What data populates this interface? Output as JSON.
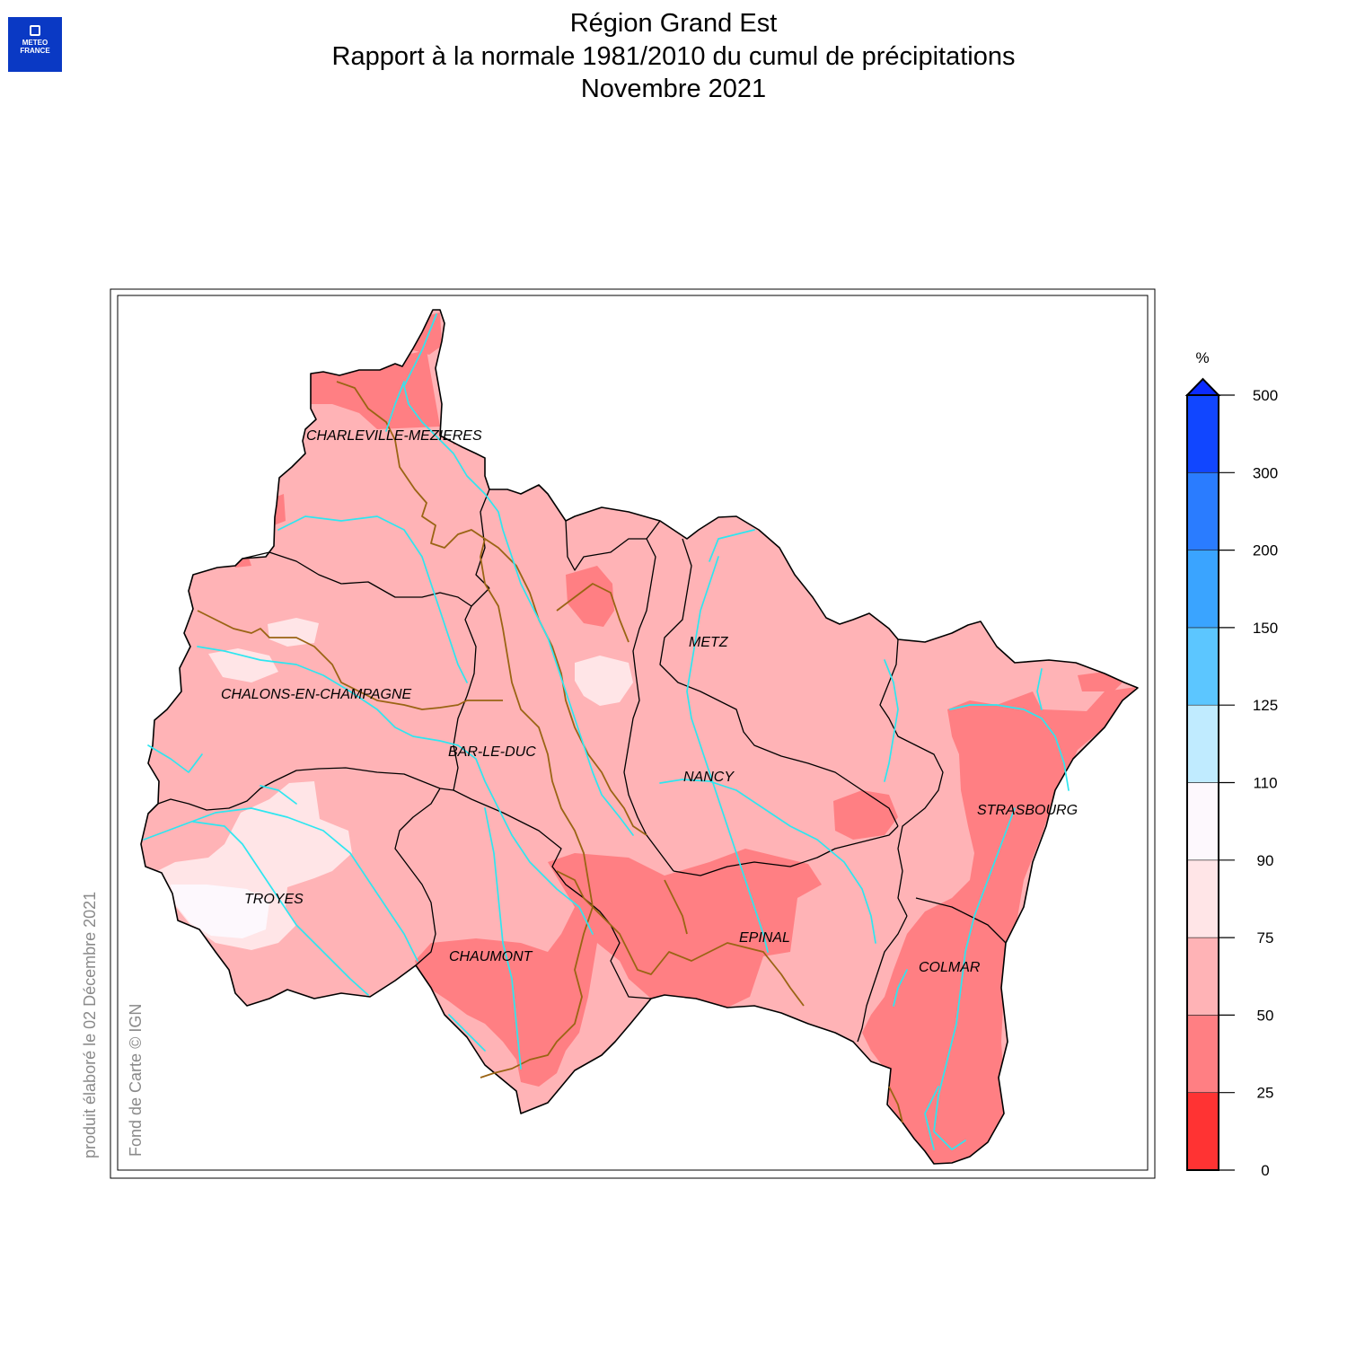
{
  "header": {
    "logo_text": [
      "METEO",
      "FRANCE"
    ],
    "title_lines": [
      "Région Grand Est",
      "Rapport à la normale 1981/2010 du cumul de précipitations",
      "Novembre 2021"
    ]
  },
  "credits": {
    "produced": "produit élaboré le 02 Décembre 2021",
    "basemap": "Fond de Carte © IGN"
  },
  "cities": [
    {
      "name": "CHARLEVILLE-MEZIERES"
    },
    {
      "name": "METZ"
    },
    {
      "name": "CHALONS-EN-CHAMPAGNE"
    },
    {
      "name": "BAR-LE-DUC"
    },
    {
      "name": "NANCY"
    },
    {
      "name": "STRASBOURG"
    },
    {
      "name": "TROYES"
    },
    {
      "name": "EPINAL"
    },
    {
      "name": "CHAUMONT"
    },
    {
      "name": "COLMAR"
    }
  ],
  "legend": {
    "unit": "%",
    "ticks": [
      "0",
      "25",
      "50",
      "75",
      "90",
      "110",
      "125",
      "150",
      "200",
      "300",
      "500"
    ],
    "colors": [
      "#ff3333",
      "#ff7f83",
      "#ffb3b6",
      "#ffe5e7",
      "#fdf8fd",
      "#c0ebff",
      "#5cc6ff",
      "#3aa4ff",
      "#2a7cff",
      "#1146ff"
    ],
    "open_top_color": "#0b2bff"
  },
  "fill_colors": {
    "dry_25_50": "#ff7f83",
    "dry_50_75": "#ffb3b6",
    "dry_75_90": "#ffe5e7",
    "normal_90_110": "#fdf8fd",
    "rivers": "#2ee6f0",
    "basins": "#9a6414",
    "departments": "#000000"
  }
}
